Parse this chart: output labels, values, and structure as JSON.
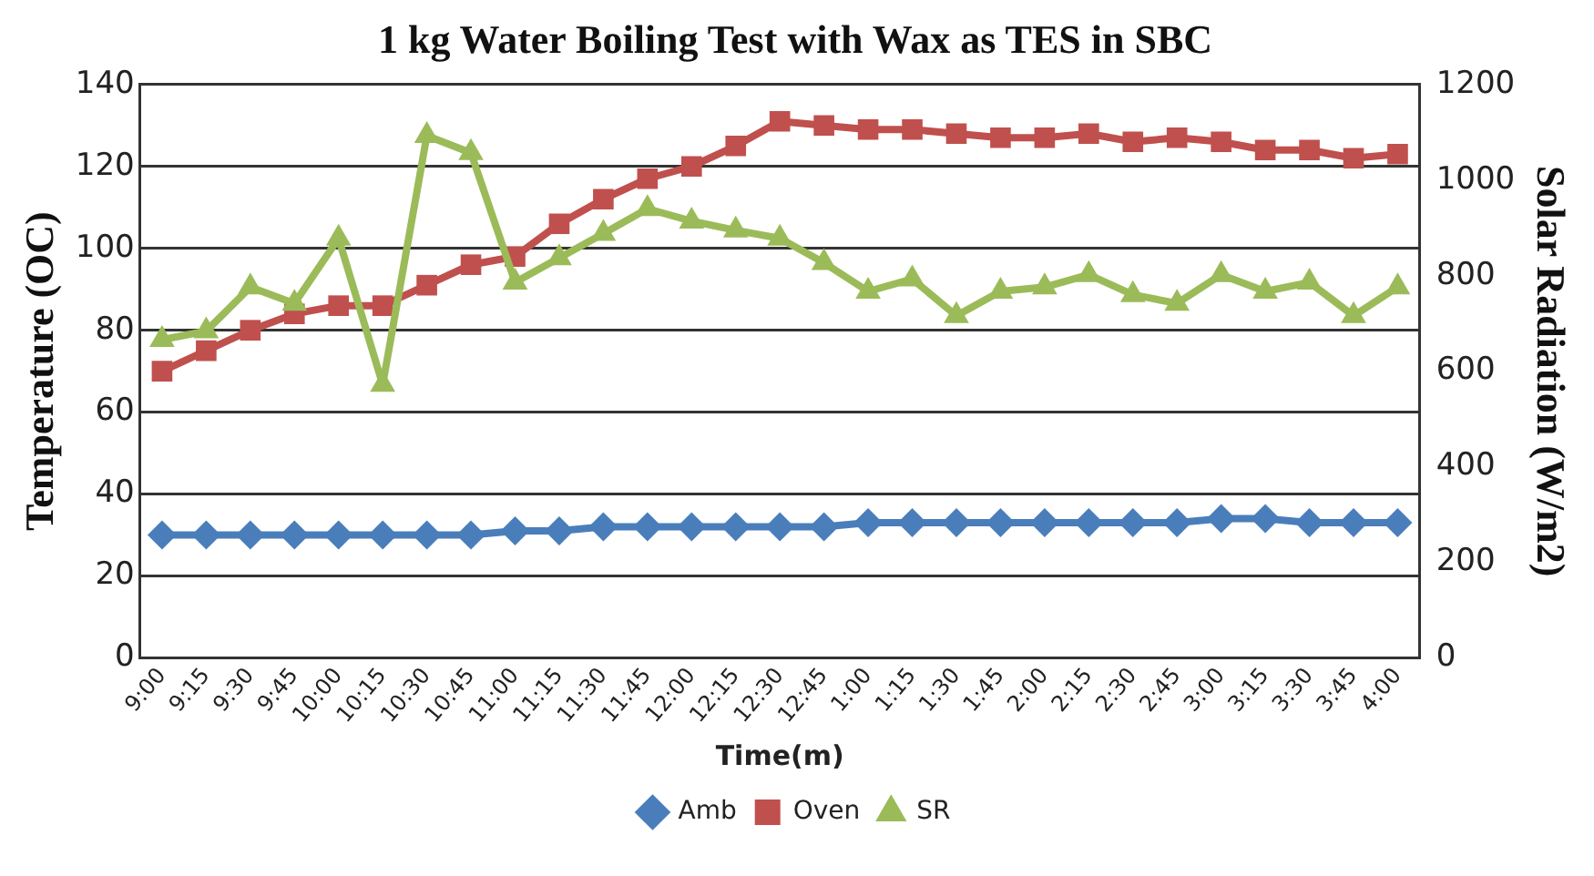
{
  "chart_data": {
    "type": "line",
    "title": "1 kg Water Boiling Test with Wax as TES in SBC",
    "xlabel": "Time(m)",
    "ylabel": "Temperature (OC)",
    "y2label": "Solar Radiation (W/m2)",
    "categories": [
      "9:00",
      "9:15",
      "9:30",
      "9:45",
      "10:00",
      "10:15",
      "10:30",
      "10:45",
      "11:00",
      "11:15",
      "11:30",
      "11:45",
      "12:00",
      "12:15",
      "12:30",
      "12:45",
      "1:00",
      "1:15",
      "1:30",
      "1:45",
      "2:00",
      "2:15",
      "2:30",
      "2:45",
      "3:00",
      "3:15",
      "3:30",
      "3:45",
      "4:00"
    ],
    "series": [
      {
        "name": "Amb",
        "color": "#4a7ebb",
        "marker": "diamond",
        "values": [
          30,
          30,
          30,
          30,
          30,
          30,
          30,
          30,
          31,
          31,
          32,
          32,
          32,
          32,
          32,
          32,
          33,
          33,
          33,
          33,
          33,
          33,
          33,
          33,
          34,
          34,
          33,
          33,
          33
        ]
      },
      {
        "name": "Oven",
        "color": "#c0504d",
        "marker": "square",
        "values": [
          70,
          75,
          80,
          84,
          86,
          86,
          91,
          96,
          98,
          106,
          112,
          117,
          120,
          125,
          131,
          130,
          129,
          129,
          128,
          127,
          127,
          128,
          126,
          127,
          126,
          124,
          124,
          122,
          123
        ]
      },
      {
        "name": "SR",
        "color": "#9bbb59",
        "marker": "triangle",
        "axis": "y2",
        "values": [
          666,
          684,
          776,
          742,
          878,
          572,
          1093,
          1057,
          786,
          837,
          888,
          940,
          914,
          895,
          878,
          827,
          767,
          793,
          716,
          767,
          776,
          802,
          760,
          742,
          802,
          767,
          786,
          716,
          776
        ]
      }
    ],
    "ylim": [
      0,
      140
    ],
    "yticks": [
      0,
      20,
      40,
      60,
      80,
      100,
      120,
      140
    ],
    "y2lim": [
      0,
      1200
    ],
    "y2ticks": [
      0,
      200,
      400,
      600,
      800,
      1000,
      1200
    ],
    "grid": "y",
    "legend": "bottom",
    "line_style": "solid"
  }
}
